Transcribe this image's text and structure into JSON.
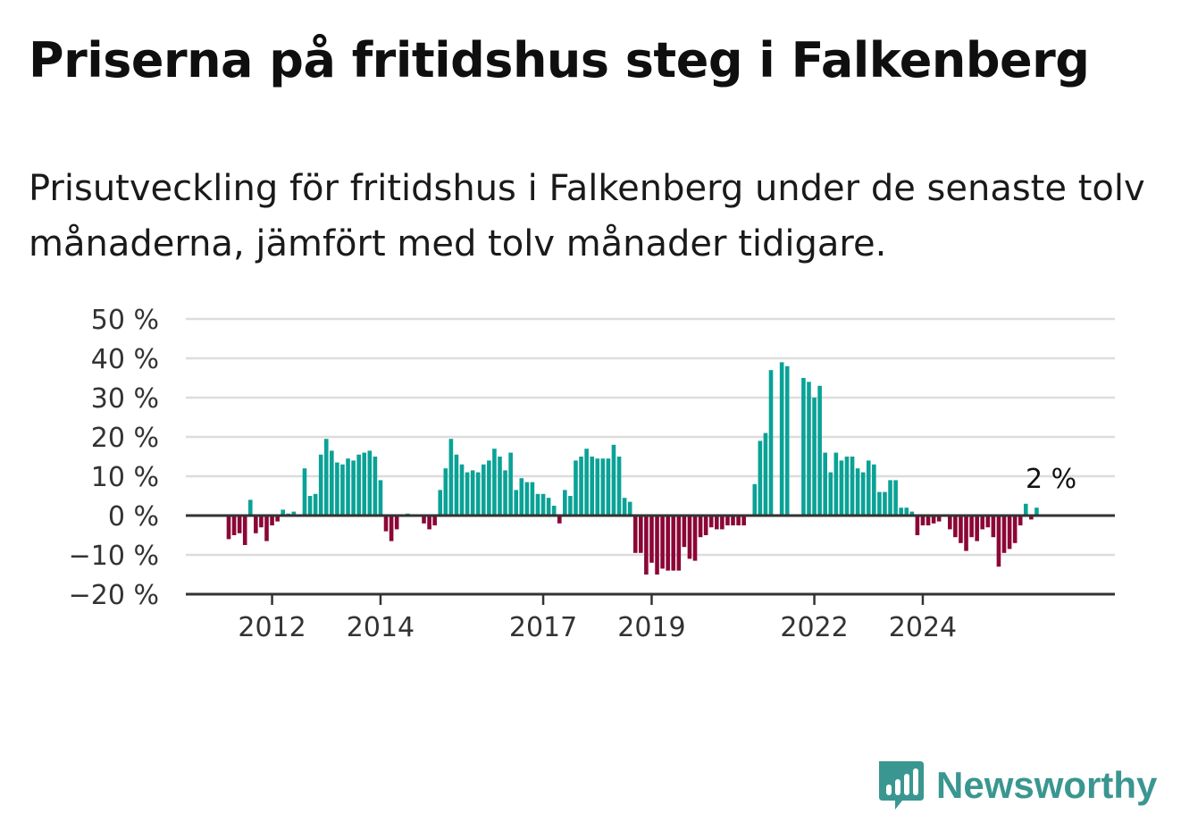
{
  "title": "Priserna på fritidshus steg i Falkenberg",
  "subtitle": "Prisutveckling för fritidshus i Falkenberg under de senaste tolv månaderna, jämfört med tolv månader tidigare.",
  "brand": {
    "name": "Newsworthy",
    "icon": "newsworthy-logo-icon"
  },
  "colors": {
    "positive": "#0aa296",
    "negative": "#8b0636",
    "grid": "#dddddd",
    "axis": "#333333"
  },
  "chart_data": {
    "type": "bar",
    "title": "Priserna på fritidshus steg i Falkenberg",
    "ylabel": "",
    "ylim": [
      -20,
      50
    ],
    "yticks": [
      50,
      40,
      30,
      20,
      10,
      0,
      -10,
      -20
    ],
    "ytick_labels": [
      "50 %",
      "40 %",
      "30 %",
      "20 %",
      "10 %",
      "0 %",
      "−10 %",
      "−20 %"
    ],
    "xtick_labels": [
      "2012",
      "2014",
      "2017",
      "2019",
      "2022",
      "2024"
    ],
    "xtick_index": [
      8,
      28,
      58,
      78,
      108,
      128
    ],
    "grid": true,
    "unit": "%",
    "values": [
      -6,
      -5,
      -4.5,
      -7.5,
      4,
      -4.5,
      -3,
      -6.5,
      -2.5,
      -1.5,
      1.5,
      0.5,
      1,
      null,
      12,
      5,
      5.5,
      15.5,
      19.5,
      16.5,
      13.5,
      13,
      14.5,
      14,
      15.5,
      16,
      16.5,
      15,
      9,
      -4,
      -6.5,
      -3.5,
      0.3,
      0.5,
      null,
      null,
      -2,
      -3.5,
      -2.5,
      6.5,
      12,
      19.5,
      15.5,
      13,
      11,
      11.5,
      11,
      13,
      14,
      17,
      15,
      11.5,
      16,
      6.5,
      9.5,
      8.5,
      8.5,
      5.5,
      5.5,
      4.5,
      2.5,
      -2,
      6.5,
      5,
      14,
      15,
      17,
      15,
      14.5,
      14.5,
      14.5,
      18,
      15,
      4.5,
      3.5,
      -9.5,
      -9.5,
      -15,
      -12,
      -15,
      -13.5,
      -14,
      -14,
      -14,
      -8,
      -11,
      -11.5,
      -5.5,
      -5,
      -3,
      -3.5,
      -3.5,
      -2.5,
      -2.5,
      -2.5,
      -2.5,
      null,
      8,
      19,
      21,
      37,
      null,
      39,
      38,
      null,
      null,
      35,
      34,
      30,
      33,
      16,
      11,
      16,
      14,
      15,
      15,
      12,
      11,
      14,
      13,
      6,
      6,
      9,
      9,
      2,
      2,
      1,
      -5,
      -2.5,
      -2.5,
      -2,
      -1.5,
      null,
      -3.5,
      -5.5,
      -7,
      -9,
      -5.5,
      -6.5,
      -3.5,
      -3,
      -5.5,
      -13,
      -9.5,
      -8.5,
      -7,
      -2.5,
      3,
      -1,
      2
    ],
    "annotation": {
      "text": "2 %",
      "index": 151
    }
  }
}
